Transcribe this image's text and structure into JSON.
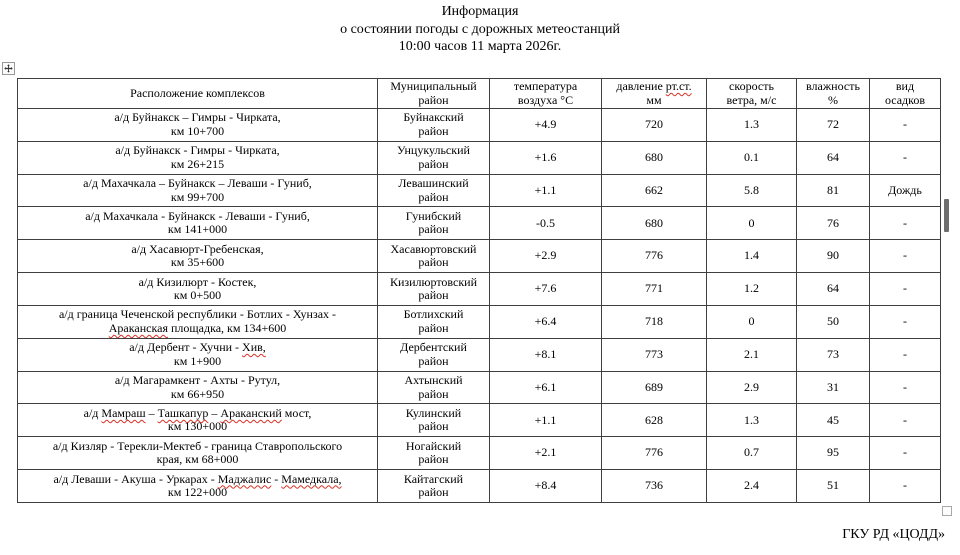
{
  "page": {
    "title_line1": "Информация",
    "title_line2": "о состоянии погоды с дорожных метеостанций",
    "title_line3": "10:00 часов 11 марта 2026г.",
    "footer_org": "ГКУ РД «ЦОДД»"
  },
  "icons": {
    "table_move_icon": "✥",
    "table_resize_icon": "□",
    "scrollbar_thumb": "▮"
  },
  "colors": {
    "text": "#000000",
    "border": "#3f3f3f",
    "spellcheck_underline": "#d93025",
    "background": "#ffffff"
  },
  "table": {
    "header": {
      "location": "Расположение комплексов",
      "district": [
        "Муниципальный",
        "район"
      ],
      "temperature": [
        "температура",
        "воздуха °С"
      ],
      "pressure": [
        "давление [[рт.ст.]]",
        "мм"
      ],
      "wind": [
        "скорость",
        "ветра, м/с"
      ],
      "humidity": [
        "влажность",
        "%"
      ],
      "precipitation": [
        "вид",
        "осадков"
      ]
    },
    "rows": [
      {
        "loc1": "а/д Буйнакск – Гимры - Чирката,",
        "loc2": "км 10+700",
        "district1": "Буйнакский",
        "district2": "район",
        "temp": "+4.9",
        "pressure": "720",
        "wind": "1.3",
        "humidity": "72",
        "precip": "-"
      },
      {
        "loc1": "а/д Буйнакск - Гимры - Чирката,",
        "loc2": "км 26+215",
        "district1": "Унцукульский",
        "district2": "район",
        "temp": "+1.6",
        "pressure": "680",
        "wind": "0.1",
        "humidity": "64",
        "precip": "-"
      },
      {
        "loc1": "а/д Махачкала – Буйнакск – Леваши - Гуниб,",
        "loc2": "км 99+700",
        "district1": "Левашинский",
        "district2": "район",
        "temp": "+1.1",
        "pressure": "662",
        "wind": "5.8",
        "humidity": "81",
        "precip": "Дождь"
      },
      {
        "loc1": "а/д Махачкала - Буйнакск - Леваши - Гуниб,",
        "loc2": "км 141+000",
        "district1": "Гунибский",
        "district2": "район",
        "temp": "-0.5",
        "pressure": "680",
        "wind": "0",
        "humidity": "76",
        "precip": "-"
      },
      {
        "loc1": "а/д Хасавюрт-Гребенская,",
        "loc2": "км 35+600",
        "district1": "Хасавюртовский",
        "district2": "район",
        "temp": "+2.9",
        "pressure": "776",
        "wind": "1.4",
        "humidity": "90",
        "precip": "-"
      },
      {
        "loc1": "а/д Кизилюрт - Костек,",
        "loc2": "км 0+500",
        "district1": "Кизилюртовский",
        "district2": "район",
        "temp": "+7.6",
        "pressure": "771",
        "wind": "1.2",
        "humidity": "64",
        "precip": "-"
      },
      {
        "loc1": "а/д граница Чеченской республики - Ботлих - Хунзах -",
        "loc2": "[[Араканская]] площадка, км 134+600",
        "district1": "Ботлихский",
        "district2": "район",
        "temp": "+6.4",
        "pressure": "718",
        "wind": "0",
        "humidity": "50",
        "precip": "-"
      },
      {
        "loc1": "а/д Дербент - Хучни - [[Хив,]]",
        "loc2": "км 1+900",
        "district1": "Дербентский",
        "district2": "район",
        "temp": "+8.1",
        "pressure": "773",
        "wind": "2.1",
        "humidity": "73",
        "precip": "-"
      },
      {
        "loc1": "а/д Магарамкент - Ахты - Рутул,",
        "loc2": "км 66+950",
        "district1": "Ахтынский",
        "district2": "район",
        "temp": "+6.1",
        "pressure": "689",
        "wind": "2.9",
        "humidity": "31",
        "precip": "-"
      },
      {
        "loc1": "а/д [[Мамраш]] – [[Ташкапур]] – [[Араканский]] мост,",
        "loc2": "км 130+000",
        "district1": "Кулинский",
        "district2": "район",
        "temp": "+1.1",
        "pressure": "628",
        "wind": "1.3",
        "humidity": "45",
        "precip": "-"
      },
      {
        "loc1": "а/д Кизляр - Терекли-Мектеб - граница Ставропольского",
        "loc2": "края, км 68+000",
        "district1": "Ногайский",
        "district2": "район",
        "temp": "+2.1",
        "pressure": "776",
        "wind": "0.7",
        "humidity": "95",
        "precip": "-"
      },
      {
        "loc1": "а/д Леваши - Акуша - Уркарах - [[Маджалис]] - [[Мамедкала,]]",
        "loc2": "км 122+000",
        "district1": "Кайтагский",
        "district2": "район",
        "temp": "+8.4",
        "pressure": "736",
        "wind": "2.4",
        "humidity": "51",
        "precip": "-"
      }
    ]
  }
}
